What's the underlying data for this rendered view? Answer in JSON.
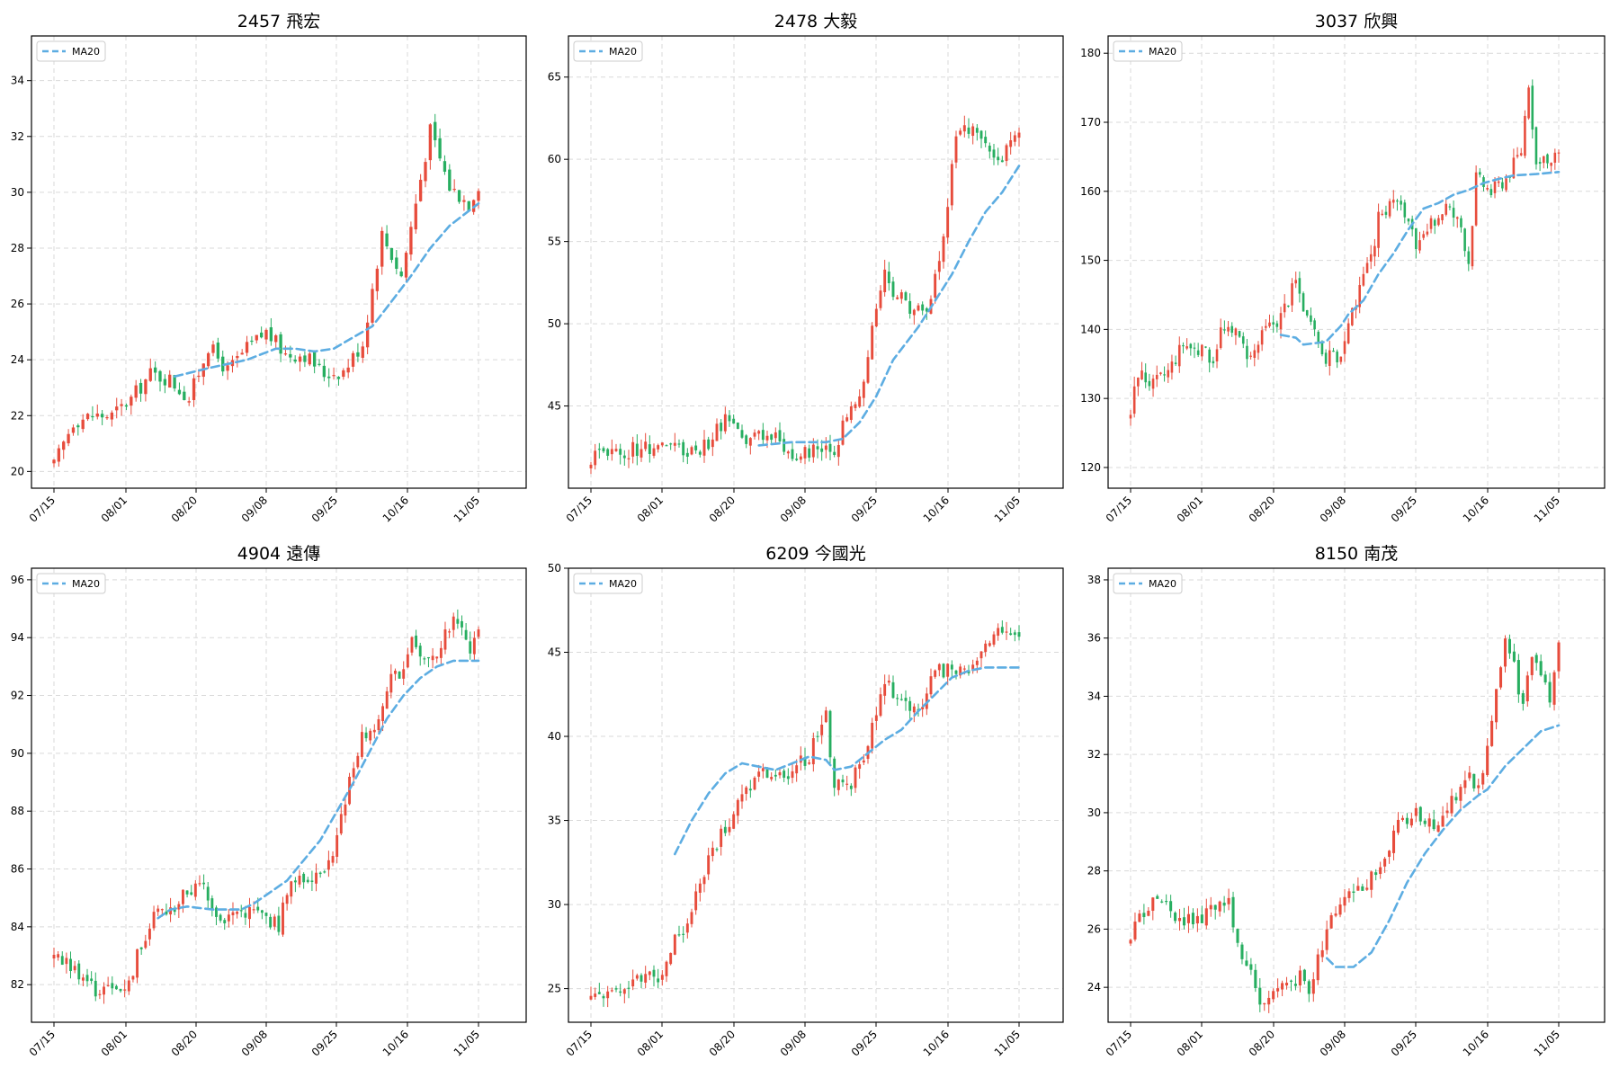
{
  "figure": {
    "colors": {
      "up": "#e74c3c",
      "down": "#27ae60",
      "ma": "#5dade2",
      "grid": "#d9d9d9",
      "axis": "#000000"
    },
    "legend_label": "MA20",
    "x_tick_labels": [
      "07/15",
      "08/01",
      "08/20",
      "09/08",
      "09/25",
      "10/16",
      "11/05"
    ]
  },
  "chart_data": [
    {
      "type": "candlestick",
      "title": "2457 飛宏",
      "ylim": [
        19.4,
        35.6
      ],
      "yticks": [
        20,
        22,
        24,
        26,
        28,
        30,
        32,
        34
      ],
      "legend": "top-left",
      "grid": true,
      "anchors": [
        [
          0,
          20.2
        ],
        [
          4,
          21.8
        ],
        [
          8,
          22.0
        ],
        [
          12,
          22.0
        ],
        [
          16,
          22.6
        ],
        [
          20,
          23.5
        ],
        [
          24,
          23.3
        ],
        [
          28,
          22.6
        ],
        [
          32,
          24.5
        ],
        [
          36,
          23.6
        ],
        [
          40,
          24.4
        ],
        [
          44,
          25.0
        ],
        [
          48,
          24.2
        ],
        [
          52,
          24.2
        ],
        [
          56,
          23.5
        ],
        [
          60,
          23.6
        ],
        [
          64,
          24.6
        ],
        [
          68,
          28.5
        ],
        [
          72,
          27.0
        ],
        [
          76,
          30.5
        ],
        [
          78,
          32.2
        ],
        [
          82,
          30.2
        ],
        [
          86,
          29.6
        ],
        [
          88,
          30.3
        ]
      ],
      "ma20": [
        [
          25,
          23.4
        ],
        [
          32,
          23.7
        ],
        [
          40,
          24.0
        ],
        [
          46,
          24.4
        ],
        [
          50,
          24.4
        ],
        [
          54,
          24.3
        ],
        [
          58,
          24.4
        ],
        [
          62,
          24.8
        ],
        [
          66,
          25.2
        ],
        [
          70,
          26.1
        ],
        [
          74,
          27.0
        ],
        [
          78,
          28.0
        ],
        [
          82,
          28.8
        ],
        [
          88,
          29.6
        ]
      ]
    },
    {
      "type": "candlestick",
      "title": "2478 大毅",
      "ylim": [
        40.0,
        67.5
      ],
      "yticks": [
        45,
        50,
        55,
        60,
        65
      ],
      "legend": "top-left",
      "grid": true,
      "anchors": [
        [
          0,
          41.8
        ],
        [
          4,
          42.3
        ],
        [
          8,
          42.2
        ],
        [
          12,
          42.5
        ],
        [
          16,
          42.6
        ],
        [
          20,
          42.4
        ],
        [
          24,
          42.3
        ],
        [
          28,
          42.7
        ],
        [
          32,
          44.2
        ],
        [
          36,
          42.8
        ],
        [
          40,
          43.2
        ],
        [
          44,
          43.3
        ],
        [
          48,
          42.0
        ],
        [
          52,
          42.3
        ],
        [
          56,
          42.2
        ],
        [
          58,
          42.4
        ],
        [
          60,
          43.8
        ],
        [
          64,
          45.5
        ],
        [
          68,
          51.0
        ],
        [
          70,
          53.0
        ],
        [
          72,
          52.0
        ],
        [
          76,
          51.0
        ],
        [
          80,
          50.5
        ],
        [
          84,
          55.0
        ],
        [
          86,
          60.0
        ],
        [
          88,
          62.0
        ],
        [
          92,
          61.5
        ],
        [
          96,
          60.0
        ],
        [
          98,
          60.0
        ],
        [
          100,
          61.0
        ],
        [
          102,
          62.0
        ]
      ],
      "ma20": [
        [
          40,
          42.6
        ],
        [
          48,
          42.8
        ],
        [
          56,
          42.8
        ],
        [
          60,
          43.0
        ],
        [
          64,
          44.0
        ],
        [
          68,
          45.6
        ],
        [
          72,
          47.8
        ],
        [
          78,
          49.8
        ],
        [
          82,
          51.4
        ],
        [
          86,
          53.0
        ],
        [
          90,
          55.0
        ],
        [
          94,
          56.8
        ],
        [
          98,
          58.0
        ],
        [
          102,
          59.6
        ]
      ]
    },
    {
      "type": "candlestick",
      "title": "3037 欣興",
      "ylim": [
        117.0,
        182.5
      ],
      "yticks": [
        120,
        130,
        140,
        150,
        160,
        170,
        180
      ],
      "legend": "top-left",
      "grid": true,
      "anchors": [
        [
          0,
          128
        ],
        [
          2,
          134
        ],
        [
          6,
          132
        ],
        [
          10,
          134
        ],
        [
          14,
          138
        ],
        [
          18,
          137
        ],
        [
          22,
          136
        ],
        [
          24,
          140
        ],
        [
          28,
          139
        ],
        [
          32,
          136
        ],
        [
          36,
          140
        ],
        [
          40,
          142
        ],
        [
          44,
          147
        ],
        [
          48,
          140
        ],
        [
          52,
          136
        ],
        [
          56,
          136
        ],
        [
          60,
          144
        ],
        [
          64,
          150
        ],
        [
          66,
          156
        ],
        [
          70,
          159
        ],
        [
          74,
          156
        ],
        [
          76,
          151
        ],
        [
          80,
          155
        ],
        [
          84,
          158
        ],
        [
          88,
          155
        ],
        [
          90,
          150
        ],
        [
          92,
          162
        ],
        [
          96,
          160
        ],
        [
          100,
          162
        ],
        [
          104,
          166
        ],
        [
          106,
          176
        ],
        [
          108,
          164
        ],
        [
          112,
          164
        ],
        [
          114,
          166
        ]
      ],
      "ma20": [
        [
          40,
          139.2
        ],
        [
          44,
          138.8
        ],
        [
          46,
          137.8
        ],
        [
          52,
          138.2
        ],
        [
          56,
          140.5
        ],
        [
          58,
          142.2
        ],
        [
          62,
          144.2
        ],
        [
          66,
          148.0
        ],
        [
          70,
          151.0
        ],
        [
          74,
          154.5
        ],
        [
          78,
          157.5
        ],
        [
          82,
          158.3
        ],
        [
          86,
          159.5
        ],
        [
          90,
          160.2
        ],
        [
          94,
          161.2
        ],
        [
          98,
          161.8
        ],
        [
          102,
          162.3
        ],
        [
          108,
          162.5
        ],
        [
          114,
          162.8
        ]
      ]
    },
    {
      "type": "candlestick",
      "title": "4904 遠傳",
      "ylim": [
        80.7,
        96.4
      ],
      "yticks": [
        82,
        84,
        86,
        88,
        90,
        92,
        94,
        96
      ],
      "legend": "top-left",
      "grid": true,
      "anchors": [
        [
          0,
          83.0
        ],
        [
          2,
          82.8
        ],
        [
          6,
          82.4
        ],
        [
          10,
          81.8
        ],
        [
          14,
          81.8
        ],
        [
          18,
          82.0
        ],
        [
          20,
          83.0
        ],
        [
          24,
          84.5
        ],
        [
          28,
          84.5
        ],
        [
          32,
          85.2
        ],
        [
          36,
          85.4
        ],
        [
          40,
          84.2
        ],
        [
          44,
          84.5
        ],
        [
          48,
          84.5
        ],
        [
          52,
          84.2
        ],
        [
          54,
          84.0
        ],
        [
          56,
          85.3
        ],
        [
          60,
          85.6
        ],
        [
          62,
          85.8
        ],
        [
          66,
          86.2
        ],
        [
          68,
          87.0
        ],
        [
          70,
          88.5
        ],
        [
          74,
          90.6
        ],
        [
          78,
          91.0
        ],
        [
          80,
          92.3
        ],
        [
          84,
          93.0
        ],
        [
          86,
          94.0
        ],
        [
          88,
          93.3
        ],
        [
          92,
          93.6
        ],
        [
          96,
          94.5
        ],
        [
          98,
          94.6
        ],
        [
          100,
          93.6
        ],
        [
          102,
          94.2
        ]
      ],
      "ma20": [
        [
          25,
          84.3
        ],
        [
          28,
          84.6
        ],
        [
          32,
          84.7
        ],
        [
          38,
          84.6
        ],
        [
          42,
          84.6
        ],
        [
          45,
          84.6
        ],
        [
          48,
          84.8
        ],
        [
          52,
          85.2
        ],
        [
          56,
          85.6
        ],
        [
          60,
          86.3
        ],
        [
          64,
          87.0
        ],
        [
          68,
          88.0
        ],
        [
          72,
          89.0
        ],
        [
          76,
          90.1
        ],
        [
          80,
          91.2
        ],
        [
          84,
          92.0
        ],
        [
          88,
          92.6
        ],
        [
          92,
          93.0
        ],
        [
          96,
          93.2
        ],
        [
          102,
          93.2
        ]
      ]
    },
    {
      "type": "candlestick",
      "title": "6209 今國光",
      "ylim": [
        23.0,
        50.0
      ],
      "yticks": [
        25,
        30,
        35,
        40,
        45,
        50
      ],
      "legend": "top-left",
      "grid": true,
      "anchors": [
        [
          0,
          24.3
        ],
        [
          4,
          25.0
        ],
        [
          8,
          25.2
        ],
        [
          12,
          25.5
        ],
        [
          16,
          25.7
        ],
        [
          20,
          27.8
        ],
        [
          24,
          29.6
        ],
        [
          28,
          32.8
        ],
        [
          32,
          34.6
        ],
        [
          36,
          36.5
        ],
        [
          40,
          38.0
        ],
        [
          44,
          37.6
        ],
        [
          48,
          38.0
        ],
        [
          52,
          38.8
        ],
        [
          56,
          41.3
        ],
        [
          58,
          37.0
        ],
        [
          62,
          37.2
        ],
        [
          66,
          39.5
        ],
        [
          70,
          43.0
        ],
        [
          74,
          42.5
        ],
        [
          78,
          41.2
        ],
        [
          82,
          44.0
        ],
        [
          86,
          43.8
        ],
        [
          90,
          44.0
        ],
        [
          94,
          45.5
        ],
        [
          96,
          46.0
        ],
        [
          100,
          46.5
        ],
        [
          102,
          46.0
        ]
      ],
      "ma20": [
        [
          20,
          33.0
        ],
        [
          24,
          35.0
        ],
        [
          28,
          36.6
        ],
        [
          32,
          37.8
        ],
        [
          36,
          38.4
        ],
        [
          40,
          38.2
        ],
        [
          44,
          38.0
        ],
        [
          48,
          38.4
        ],
        [
          52,
          38.8
        ],
        [
          56,
          38.6
        ],
        [
          58,
          38.0
        ],
        [
          62,
          38.2
        ],
        [
          66,
          39.0
        ],
        [
          70,
          39.8
        ],
        [
          74,
          40.4
        ],
        [
          78,
          41.5
        ],
        [
          82,
          42.5
        ],
        [
          86,
          43.5
        ],
        [
          90,
          43.9
        ],
        [
          94,
          44.1
        ],
        [
          102,
          44.1
        ]
      ]
    },
    {
      "type": "candlestick",
      "title": "8150 南茂",
      "ylim": [
        22.8,
        38.4
      ],
      "yticks": [
        24,
        26,
        28,
        30,
        32,
        34,
        36,
        38
      ],
      "legend": "top-left",
      "grid": true,
      "anchors": [
        [
          0,
          25.9
        ],
        [
          2,
          26.4
        ],
        [
          6,
          27.0
        ],
        [
          10,
          26.4
        ],
        [
          14,
          26.3
        ],
        [
          18,
          26.6
        ],
        [
          22,
          26.8
        ],
        [
          24,
          25.6
        ],
        [
          28,
          24.0
        ],
        [
          30,
          23.3
        ],
        [
          34,
          24.0
        ],
        [
          38,
          24.4
        ],
        [
          40,
          23.9
        ],
        [
          44,
          26.0
        ],
        [
          48,
          27.3
        ],
        [
          52,
          27.5
        ],
        [
          56,
          28.2
        ],
        [
          60,
          29.5
        ],
        [
          64,
          30.0
        ],
        [
          68,
          29.6
        ],
        [
          72,
          30.5
        ],
        [
          76,
          31.2
        ],
        [
          78,
          30.8
        ],
        [
          80,
          32.2
        ],
        [
          84,
          35.8
        ],
        [
          86,
          35.0
        ],
        [
          88,
          33.5
        ],
        [
          90,
          35.5
        ],
        [
          94,
          34.0
        ],
        [
          96,
          36.0
        ]
      ],
      "ma20": [
        [
          44,
          25.0
        ],
        [
          46,
          24.7
        ],
        [
          50,
          24.7
        ],
        [
          54,
          25.2
        ],
        [
          58,
          26.3
        ],
        [
          62,
          27.6
        ],
        [
          66,
          28.6
        ],
        [
          70,
          29.4
        ],
        [
          74,
          30.1
        ],
        [
          78,
          30.6
        ],
        [
          80,
          30.8
        ],
        [
          84,
          31.6
        ],
        [
          88,
          32.2
        ],
        [
          92,
          32.8
        ],
        [
          96,
          33.0
        ]
      ]
    }
  ]
}
